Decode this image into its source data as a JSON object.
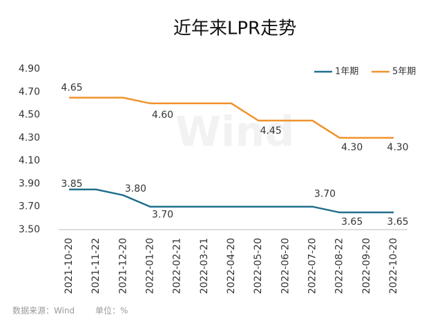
{
  "chart_data": {
    "type": "line",
    "title": "近年来LPR走势",
    "categories": [
      "2021-10-20",
      "2021-11-22",
      "2021-12-20",
      "2022-01-20",
      "2022-02-21",
      "2022-03-21",
      "2022-04-20",
      "2022-05-20",
      "2022-06-20",
      "2022-07-20",
      "2022-08-22",
      "2022-09-20",
      "2022-10-20"
    ],
    "series": [
      {
        "name": "1年期",
        "color": "#1f6f8b",
        "values": [
          3.85,
          3.85,
          3.8,
          3.7,
          3.7,
          3.7,
          3.7,
          3.7,
          3.7,
          3.7,
          3.65,
          3.65,
          3.65
        ],
        "value_labels": [
          "3.85",
          null,
          "3.80",
          "3.70",
          null,
          null,
          null,
          null,
          null,
          "3.70",
          "3.65",
          null,
          "3.65"
        ]
      },
      {
        "name": "5年期",
        "color": "#f0922b",
        "values": [
          4.65,
          4.65,
          4.65,
          4.6,
          4.6,
          4.6,
          4.6,
          4.45,
          4.45,
          4.45,
          4.3,
          4.3,
          4.3
        ],
        "value_labels": [
          "4.65",
          null,
          null,
          "4.60",
          null,
          null,
          null,
          "4.45",
          null,
          null,
          "4.30",
          null,
          "4.30"
        ]
      }
    ],
    "ylim": [
      3.5,
      4.9
    ],
    "yticks": [
      {
        "value": 3.5,
        "label": "3.50"
      },
      {
        "value": 3.7,
        "label": "3.70"
      },
      {
        "value": 3.9,
        "label": "3.90"
      },
      {
        "value": 4.1,
        "label": "4.10"
      },
      {
        "value": 4.3,
        "label": "4.30"
      },
      {
        "value": 4.5,
        "label": "4.50"
      },
      {
        "value": 4.7,
        "label": "4.70"
      },
      {
        "value": 4.9,
        "label": "4.90"
      }
    ],
    "legend": "top-right",
    "watermark": "Wind",
    "source": "数据来源：Wind",
    "unit": "单位：%"
  }
}
